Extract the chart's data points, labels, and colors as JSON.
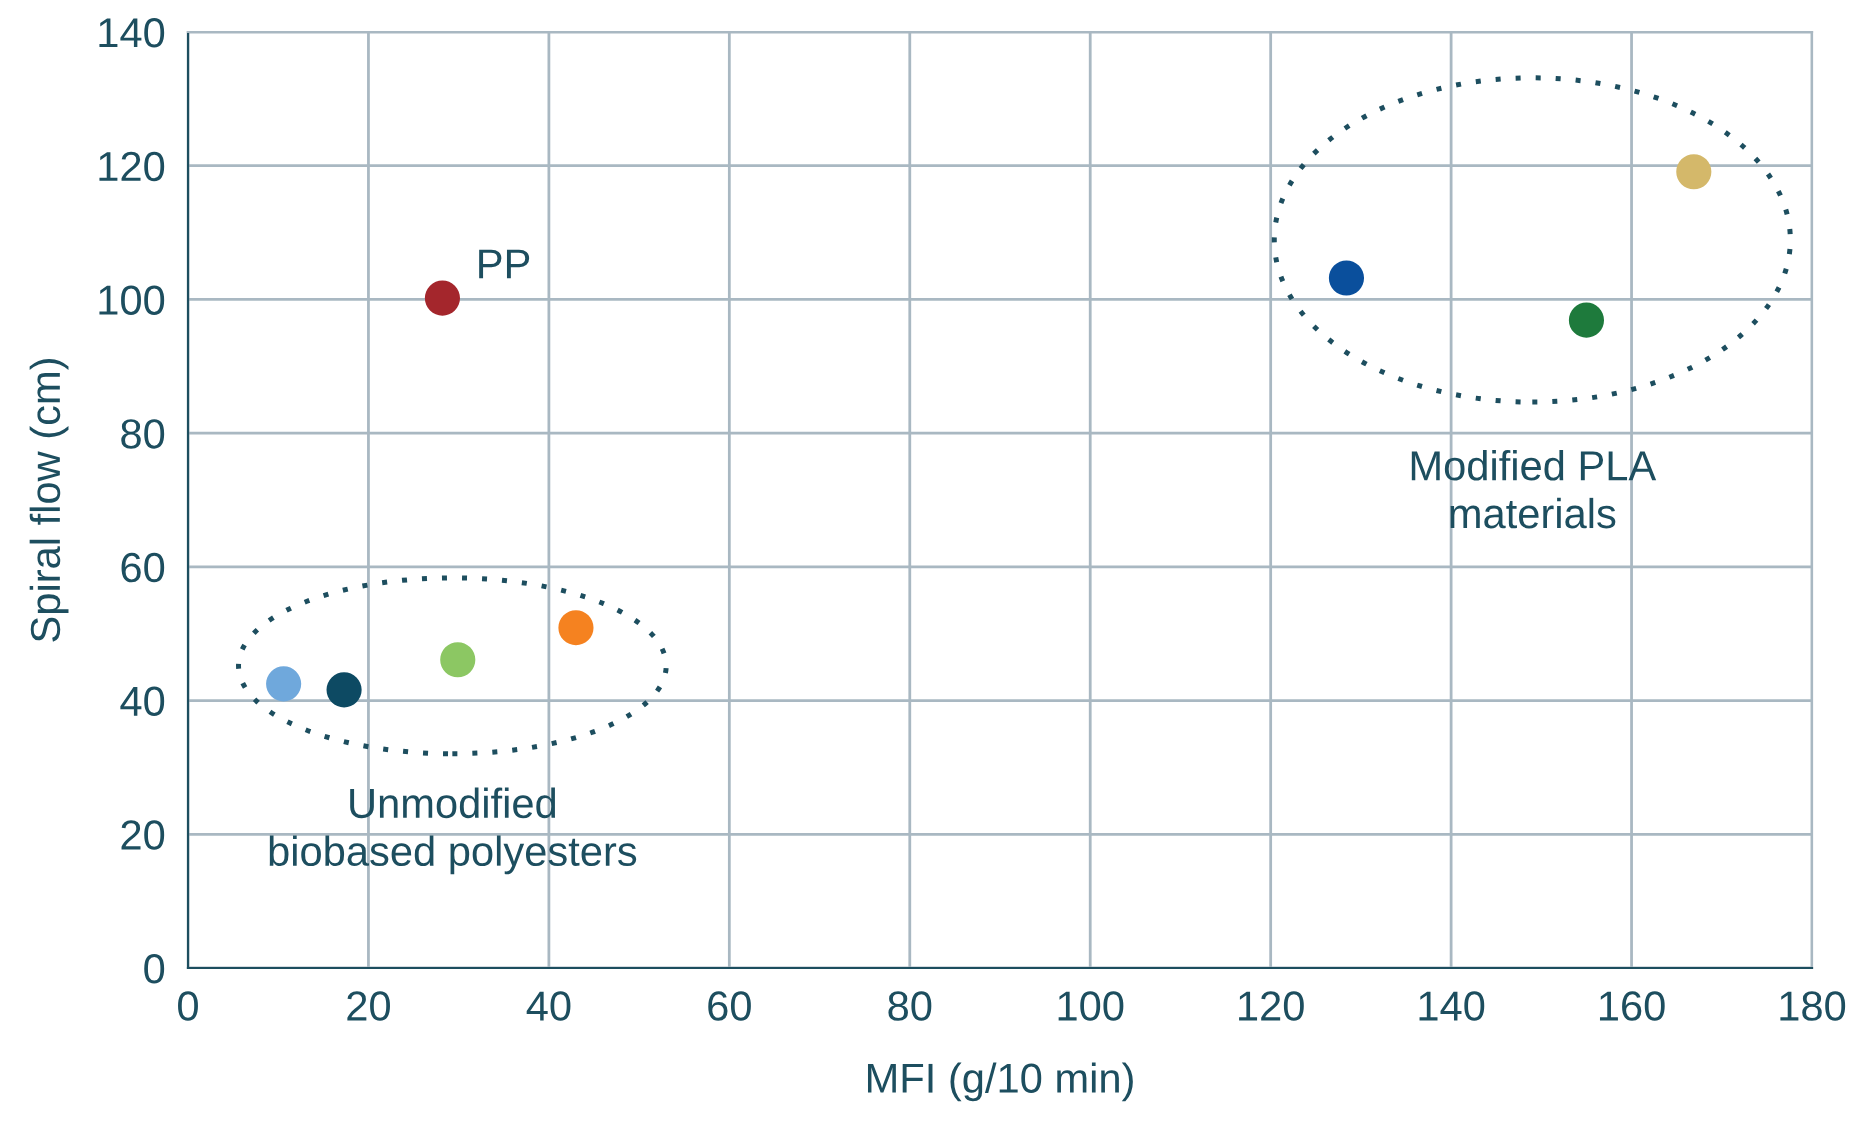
{
  "chart_data": {
    "type": "scatter",
    "xlabel": "MFI (g/10 min)",
    "ylabel": "Spiral flow (cm)",
    "x": [
      10.6,
      17.3,
      29.9,
      43.0,
      28.2,
      128.4,
      155.0,
      166.9
    ],
    "values": [
      42.5,
      41.6,
      46.1,
      50.9,
      100.2,
      103.2,
      96.9,
      119.1
    ],
    "colors": [
      "#6fa8dc",
      "#0d4a63",
      "#8cc763",
      "#f58220",
      "#a4262c",
      "#0a4f9c",
      "#1e7a3c",
      "#d4b86a"
    ],
    "marker": "circle",
    "xlim": [
      0,
      180
    ],
    "xticks": [
      0,
      20,
      40,
      60,
      80,
      100,
      120,
      140,
      160,
      180
    ],
    "ylim": [
      0,
      140
    ],
    "yticks": [
      0,
      20,
      40,
      60,
      80,
      100,
      120,
      140
    ],
    "grid": true,
    "annotations": [
      {
        "text": "PP",
        "x": 28.2,
        "y": 100.2
      },
      "Unmodified\nbiobased polyesters",
      "Modified PLA\nmaterials"
    ]
  }
}
